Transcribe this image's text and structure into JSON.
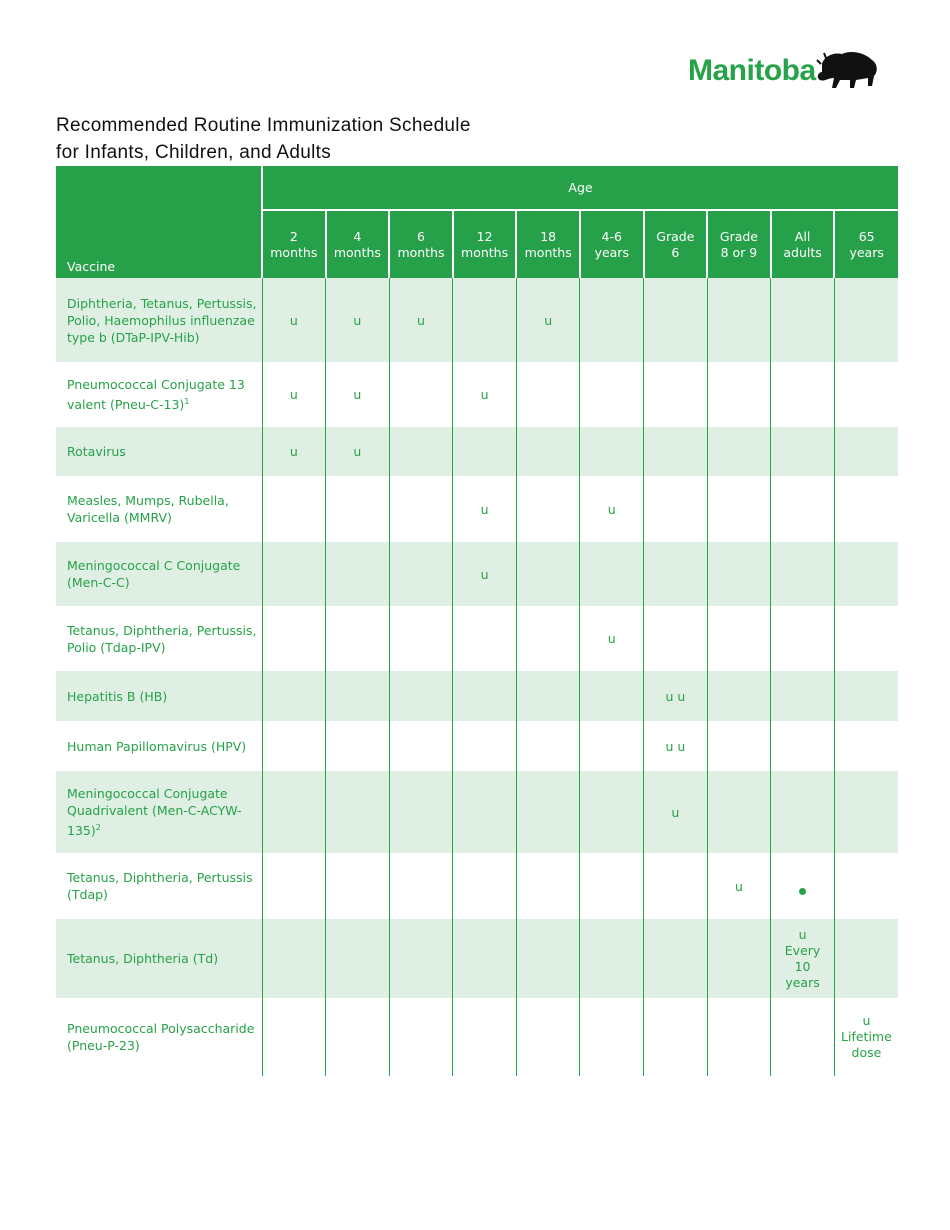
{
  "logo": {
    "text": "Manitoba",
    "icon": "bison-icon"
  },
  "title": {
    "line1": "Recommended Routine Immunization Schedule",
    "line2": "for Infants, Children, and Adults"
  },
  "table": {
    "vaccine_header": "Vaccine",
    "age_header": "Age",
    "columns": [
      [
        "2",
        "months"
      ],
      [
        "4",
        "months"
      ],
      [
        "6",
        "months"
      ],
      [
        "12",
        "months"
      ],
      [
        "18",
        "months"
      ],
      [
        "4-6",
        "years"
      ],
      [
        "Grade",
        "6"
      ],
      [
        "Grade",
        "8 or 9"
      ],
      [
        "All",
        "adults"
      ],
      [
        "65",
        "years"
      ]
    ],
    "rows": [
      {
        "vaccine": "Diphtheria, Tetanus, Pertussis, Polio, Haemophilus influenzae type b (DTaP-IPV-Hib)",
        "sup": "",
        "cells": [
          "u",
          "u",
          "u",
          "",
          "u",
          "",
          "",
          "",
          "",
          ""
        ]
      },
      {
        "vaccine": "Pneumococcal Conjugate 13 valent (Pneu-C-13)",
        "sup": "1",
        "cells": [
          "u",
          "u",
          "",
          "u",
          "",
          "",
          "",
          "",
          "",
          ""
        ]
      },
      {
        "vaccine": "Rotavirus",
        "sup": "",
        "cells": [
          "u",
          "u",
          "",
          "",
          "",
          "",
          "",
          "",
          "",
          ""
        ]
      },
      {
        "vaccine": "Measles, Mumps, Rubella, Varicella (MMRV)",
        "sup": "",
        "cells": [
          "",
          "",
          "",
          "u",
          "",
          "u",
          "",
          "",
          "",
          ""
        ]
      },
      {
        "vaccine": "Meningococcal C Conjugate (Men-C-C)",
        "sup": "",
        "cells": [
          "",
          "",
          "",
          "u",
          "",
          "",
          "",
          "",
          "",
          ""
        ]
      },
      {
        "vaccine": "Tetanus, Diphtheria, Pertussis, Polio (Tdap-IPV)",
        "sup": "",
        "cells": [
          "",
          "",
          "",
          "",
          "",
          "u",
          "",
          "",
          "",
          ""
        ]
      },
      {
        "vaccine": "Hepatitis B (HB)",
        "sup": "",
        "cells": [
          "",
          "",
          "",
          "",
          "",
          "",
          "u u",
          "",
          "",
          ""
        ]
      },
      {
        "vaccine": "Human Papillomavirus (HPV)",
        "sup": "",
        "cells": [
          "",
          "",
          "",
          "",
          "",
          "",
          "u u",
          "",
          "",
          ""
        ]
      },
      {
        "vaccine": "Meningococcal Conjugate Quadrivalent (Men-C-ACYW-135)",
        "sup": "2",
        "cells": [
          "",
          "",
          "",
          "",
          "",
          "",
          "u",
          "",
          "",
          ""
        ]
      },
      {
        "vaccine": "Tetanus, Diphtheria, Pertussis (Tdap)",
        "sup": "",
        "cells": [
          "",
          "",
          "",
          "",
          "",
          "",
          "",
          "u",
          "•",
          ""
        ]
      },
      {
        "vaccine": "Tetanus, Diphtheria (Td)",
        "sup": "",
        "cells": [
          "",
          "",
          "",
          "",
          "",
          "",
          "",
          "",
          "u\nEvery\n10\nyears",
          ""
        ]
      },
      {
        "vaccine": "Pneumococcal Polysaccharide (Pneu-P-23)",
        "sup": "",
        "cells": [
          "",
          "",
          "",
          "",
          "",
          "",
          "",
          "",
          "",
          "u\nLifetime\ndose"
        ]
      }
    ]
  },
  "colors": {
    "brand_green": "#27a149",
    "row_tint": "#dfefe3"
  }
}
